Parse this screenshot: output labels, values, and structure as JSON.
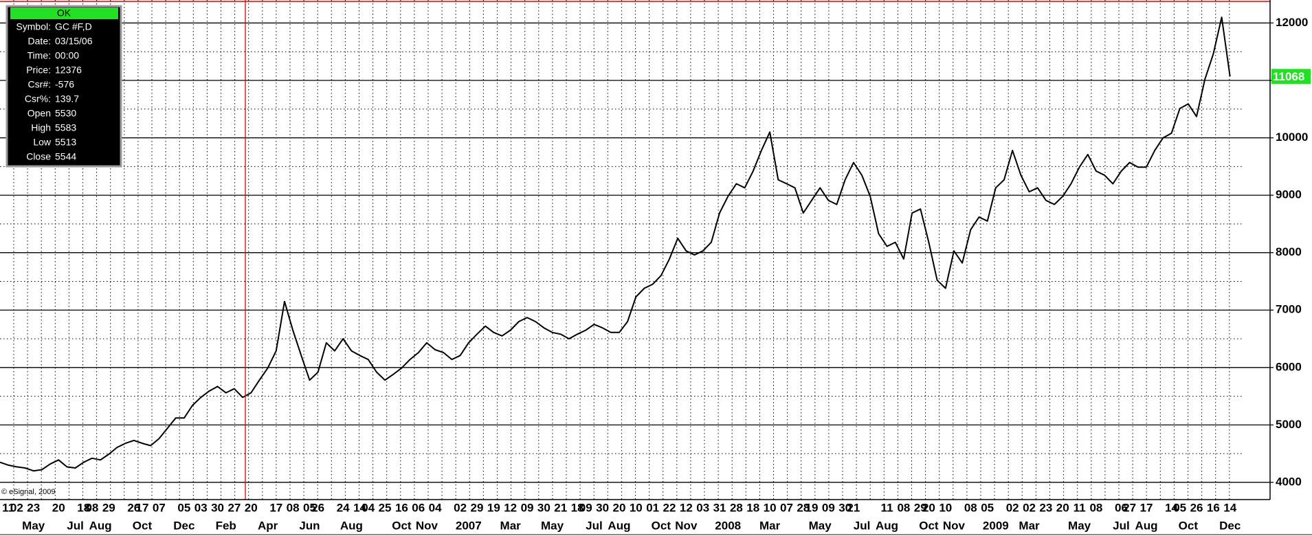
{
  "chart_data": {
    "type": "line",
    "color": "#000000",
    "ylim": [
      3700,
      12400
    ],
    "yticks": [
      4000,
      5000,
      6000,
      7000,
      8000,
      9000,
      10000,
      11000,
      12000
    ],
    "grid": true,
    "cursor_price": 12376,
    "copyright": "© eSignal, 2009",
    "categories": [
      null,
      "11",
      "02",
      null,
      "23",
      null,
      null,
      "20",
      null,
      null,
      "18",
      "08",
      null,
      "29",
      null,
      null,
      "26",
      "17",
      null,
      "07",
      null,
      null,
      "05",
      null,
      "03",
      null,
      "30",
      null,
      "27",
      null,
      "20",
      null,
      null,
      "17",
      null,
      "08",
      null,
      "05",
      "26",
      null,
      null,
      "24",
      null,
      "14",
      "04",
      null,
      "25",
      null,
      "16",
      null,
      "06",
      null,
      "04",
      null,
      null,
      "02",
      null,
      "29",
      null,
      "19",
      null,
      "12",
      null,
      "09",
      null,
      "30",
      null,
      "21",
      null,
      "18",
      "09",
      null,
      "30",
      null,
      "20",
      null,
      "10",
      null,
      "01",
      null,
      "22",
      null,
      "12",
      null,
      "03",
      null,
      "31",
      null,
      "28",
      null,
      "18",
      null,
      "10",
      null,
      "07",
      null,
      "28",
      "19",
      null,
      "09",
      null,
      "30",
      "21",
      null,
      null,
      null,
      "11",
      null,
      "08",
      null,
      "29",
      "20",
      null,
      "10",
      null,
      null,
      "08",
      null,
      "05",
      null,
      null,
      "02",
      null,
      "02",
      null,
      "23",
      null,
      "20",
      null,
      "11",
      null,
      "08",
      null,
      null,
      "06",
      "27",
      null,
      "17",
      null,
      null,
      "14",
      "05",
      null,
      "26",
      null,
      "16",
      null,
      "14"
    ],
    "month_labels": [
      null,
      null,
      null,
      null,
      "May",
      null,
      null,
      null,
      null,
      "Jul",
      null,
      null,
      "Aug",
      null,
      null,
      null,
      null,
      "Oct",
      null,
      null,
      null,
      null,
      "Dec",
      null,
      null,
      null,
      null,
      "Feb",
      null,
      null,
      null,
      null,
      "Apr",
      null,
      null,
      null,
      null,
      "Jun",
      null,
      null,
      null,
      null,
      "Aug",
      null,
      null,
      null,
      null,
      null,
      "Oct",
      null,
      null,
      "Nov",
      null,
      null,
      null,
      null,
      "2007",
      null,
      null,
      null,
      null,
      "Mar",
      null,
      null,
      null,
      null,
      "May",
      null,
      null,
      null,
      null,
      "Jul",
      null,
      null,
      "Aug",
      null,
      null,
      null,
      null,
      "Oct",
      null,
      null,
      "Nov",
      null,
      null,
      null,
      null,
      "2008",
      null,
      null,
      null,
      null,
      "Mar",
      null,
      null,
      null,
      null,
      null,
      "May",
      null,
      null,
      null,
      null,
      "Jul",
      null,
      null,
      "Aug",
      null,
      null,
      null,
      null,
      "Oct",
      null,
      null,
      "Nov",
      null,
      null,
      null,
      null,
      "2009",
      null,
      null,
      null,
      "Mar",
      null,
      null,
      null,
      null,
      null,
      "May",
      null,
      null,
      null,
      null,
      "Jul",
      null,
      null,
      "Aug",
      null,
      null,
      null,
      null,
      "Oct",
      null,
      null,
      null,
      null,
      "Dec"
    ],
    "values": [
      4350,
      4300,
      4270,
      4250,
      4200,
      4220,
      4320,
      4390,
      4270,
      4250,
      4350,
      4420,
      4390,
      4490,
      4610,
      4680,
      4730,
      4680,
      4640,
      4760,
      4940,
      5120,
      5120,
      5340,
      5480,
      5590,
      5670,
      5560,
      5630,
      5480,
      5560,
      5780,
      5990,
      6290,
      7150,
      6650,
      6210,
      5780,
      5920,
      6430,
      6290,
      6500,
      6290,
      6210,
      6140,
      5920,
      5780,
      5880,
      5990,
      6140,
      6260,
      6430,
      6310,
      6260,
      6140,
      6210,
      6430,
      6580,
      6720,
      6610,
      6550,
      6650,
      6800,
      6870,
      6800,
      6690,
      6610,
      6580,
      6500,
      6580,
      6650,
      6750,
      6690,
      6610,
      6610,
      6800,
      7230,
      7380,
      7450,
      7600,
      7890,
      8250,
      8030,
      7960,
      8030,
      8180,
      8690,
      8980,
      9200,
      9130,
      9420,
      9780,
      10100,
      9270,
      9200,
      9130,
      8690,
      8910,
      9130,
      8910,
      8840,
      9270,
      9570,
      9350,
      8980,
      8330,
      8110,
      8180,
      7890,
      8690,
      8760,
      8180,
      7520,
      7380,
      8030,
      7820,
      8400,
      8620,
      8550,
      9130,
      9270,
      9780,
      9350,
      9060,
      9130,
      8910,
      8840,
      8980,
      9200,
      9490,
      9710,
      9420,
      9350,
      9200,
      9420,
      9570,
      9490,
      9490,
      9780,
      10000,
      10080,
      10510,
      10590,
      10370,
      11020,
      11460,
      12100,
      11068
    ]
  },
  "info_panel": {
    "button": "OK",
    "rows": [
      {
        "label": "Symbol:",
        "value": "GC #F,D"
      },
      {
        "label": "Date:",
        "value": "03/15/06"
      },
      {
        "label": "Time:",
        "value": "00:00"
      },
      {
        "label": "Price:"
      },
      {
        "label": "Csr#:",
        "value": -576
      },
      {
        "label": "Csr%:",
        "value": 139.7
      },
      {
        "label": "Open",
        "value": 5530
      },
      {
        "label": "High",
        "value": 5583
      },
      {
        "label": "Low",
        "value": 5513
      },
      {
        "label": "Close",
        "value": 5544
      }
    ]
  }
}
